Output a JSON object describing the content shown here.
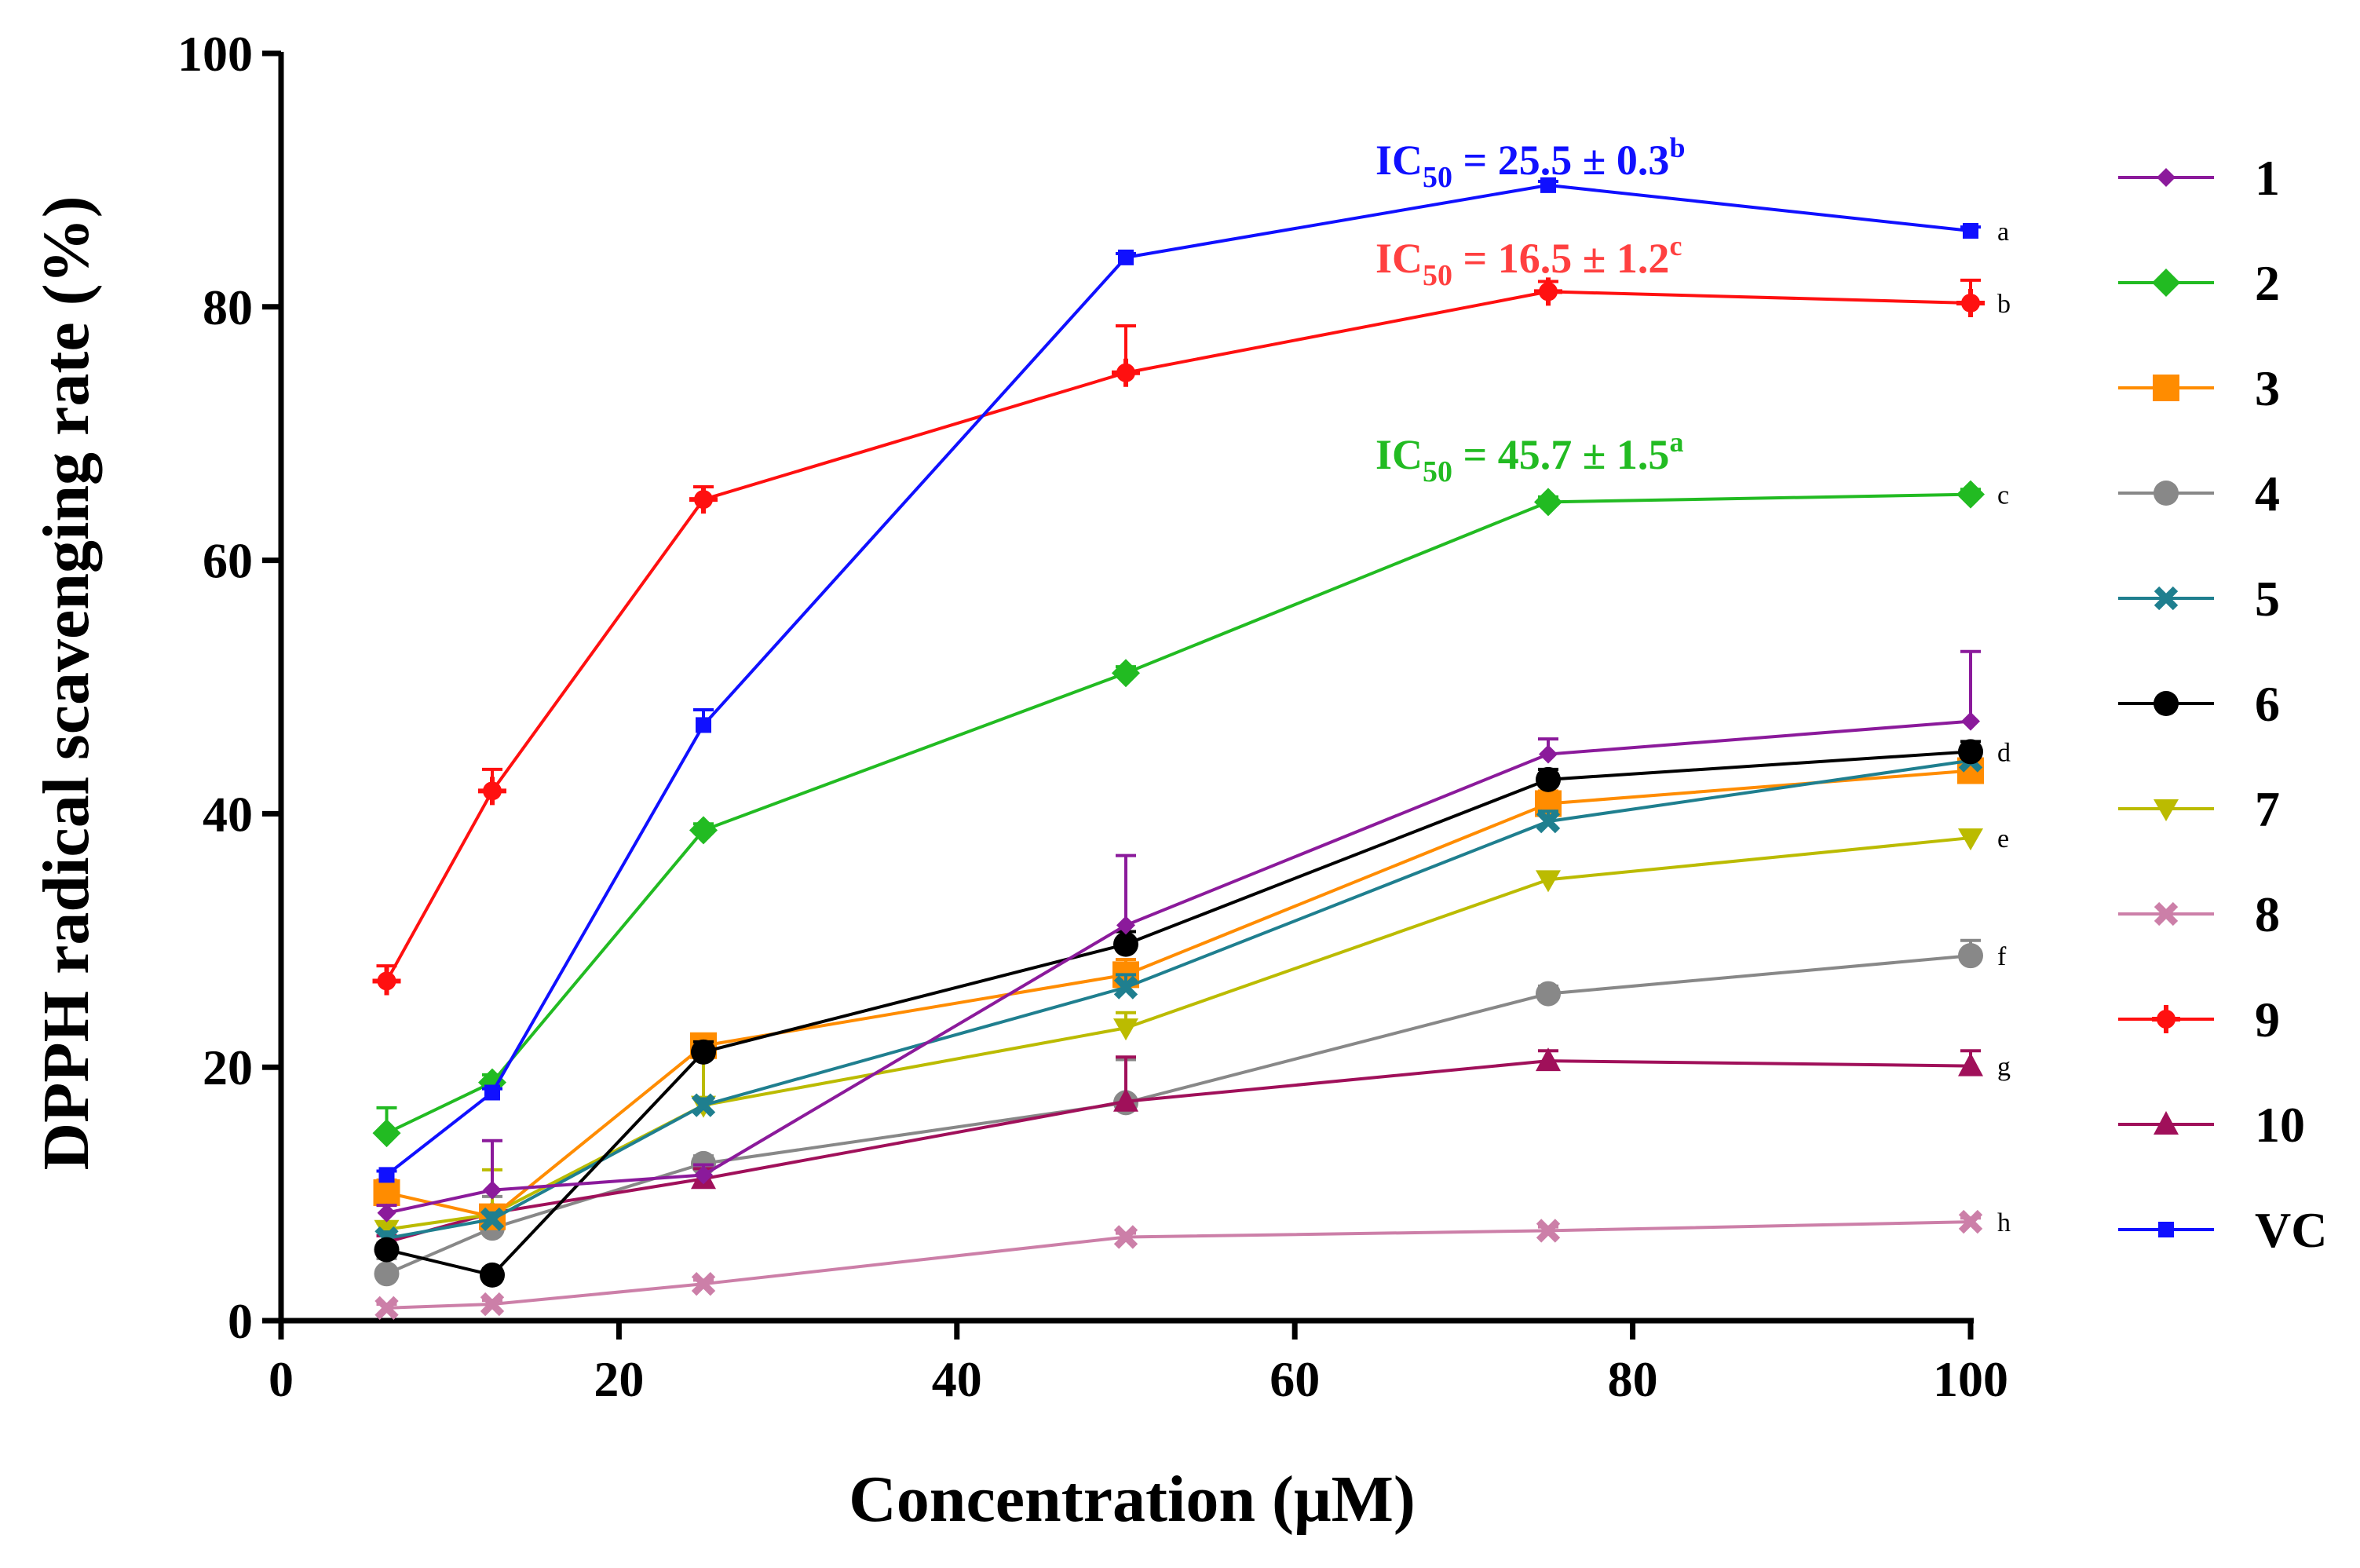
{
  "chart_data": {
    "type": "line",
    "title": "",
    "xlabel": "Concentration (μM)",
    "ylabel": "DPPH radical scavenging rate (%)",
    "xlim": [
      0,
      100
    ],
    "ylim": [
      0,
      100
    ],
    "xticks": [
      0,
      20,
      40,
      60,
      80,
      100
    ],
    "yticks": [
      0,
      20,
      40,
      60,
      80,
      100
    ],
    "legend_position": "right",
    "series": [
      {
        "name": "1",
        "color": "#8b1a9b",
        "marker": "diamond-small",
        "x": [
          6.25,
          12.5,
          25,
          50,
          75,
          100
        ],
        "values": [
          8.5,
          10.3,
          11.5,
          31.2,
          44.7,
          47.3
        ],
        "errors": [
          0.6,
          3.9,
          0.8,
          5.5,
          1.2,
          5.5
        ],
        "letter": ""
      },
      {
        "name": "2",
        "color": "#22bb22",
        "marker": "diamond",
        "x": [
          6.25,
          12.5,
          25,
          50,
          75,
          100
        ],
        "values": [
          14.8,
          18.8,
          38.7,
          51.1,
          64.6,
          65.2
        ],
        "errors": [
          2.0,
          0.6,
          0.5,
          0.5,
          0.4,
          0.4
        ],
        "letter": "c"
      },
      {
        "name": "3",
        "color": "#ff8c00",
        "marker": "square",
        "x": [
          6.25,
          12.5,
          25,
          50,
          75,
          100
        ],
        "values": [
          10.1,
          8.2,
          21.7,
          27.3,
          40.8,
          43.4
        ],
        "errors": [
          1.0,
          0.8,
          0.5,
          1.2,
          1.0,
          1.0
        ],
        "letter": ""
      },
      {
        "name": "4",
        "color": "#888888",
        "marker": "circle",
        "x": [
          6.25,
          12.5,
          25,
          50,
          75,
          100
        ],
        "values": [
          3.7,
          7.3,
          12.4,
          17.2,
          25.8,
          28.8
        ],
        "errors": [
          1.2,
          2.5,
          0.6,
          3.4,
          0.6,
          1.2
        ],
        "letter": "f"
      },
      {
        "name": "5",
        "color": "#1f7f8f",
        "marker": "x",
        "x": [
          6.25,
          12.5,
          25,
          50,
          75,
          100
        ],
        "values": [
          6.5,
          8.0,
          17.0,
          26.3,
          39.4,
          44.2
        ],
        "errors": [
          0.5,
          0.5,
          0.5,
          1.0,
          0.8,
          0.8
        ],
        "letter": ""
      },
      {
        "name": "6",
        "color": "#000000",
        "marker": "circle",
        "x": [
          6.25,
          12.5,
          25,
          50,
          75,
          100
        ],
        "values": [
          5.6,
          3.6,
          21.2,
          29.7,
          42.7,
          44.9
        ],
        "errors": [
          0.5,
          0.5,
          0.8,
          1.0,
          0.8,
          0.8
        ],
        "letter": "d"
      },
      {
        "name": "7",
        "color": "#bbbb00",
        "marker": "triangle-down",
        "x": [
          6.25,
          12.5,
          25,
          50,
          75,
          100
        ],
        "values": [
          7.2,
          8.4,
          17.0,
          23.1,
          34.8,
          38.1
        ],
        "errors": [
          0.5,
          3.5,
          4.0,
          1.2,
          0.6,
          0.6
        ],
        "letter": "e"
      },
      {
        "name": "8",
        "color": "#cc7fa8",
        "marker": "x",
        "x": [
          6.25,
          12.5,
          25,
          50,
          75,
          100
        ],
        "values": [
          1.0,
          1.3,
          2.9,
          6.6,
          7.1,
          7.8
        ],
        "errors": [
          0.3,
          0.3,
          0.3,
          0.3,
          0.3,
          0.3
        ],
        "letter": "h"
      },
      {
        "name": "9",
        "color": "#ff1010",
        "marker": "plus-dot",
        "x": [
          6.25,
          12.5,
          25,
          50,
          75,
          100
        ],
        "values": [
          26.8,
          41.8,
          64.8,
          74.8,
          81.2,
          80.3
        ],
        "errors": [
          1.2,
          1.7,
          1.0,
          3.7,
          0.8,
          1.8
        ],
        "letter": "b"
      },
      {
        "name": "10",
        "color": "#a0105a",
        "marker": "triangle",
        "x": [
          6.25,
          12.5,
          25,
          50,
          75,
          100
        ],
        "values": [
          6.2,
          8.5,
          11.2,
          17.3,
          20.5,
          20.1
        ],
        "errors": [
          0.5,
          0.5,
          0.8,
          3.5,
          0.8,
          1.2
        ],
        "letter": "g"
      },
      {
        "name": "VC",
        "color": "#1010ff",
        "marker": "square-small",
        "x": [
          6.25,
          12.5,
          25,
          50,
          75,
          100
        ],
        "values": [
          11.5,
          18.0,
          47.0,
          83.9,
          89.6,
          86.0
        ],
        "errors": [
          0.3,
          0.3,
          1.2,
          0.3,
          0.3,
          0.3
        ],
        "letter": "a"
      }
    ],
    "annotations": [
      {
        "id": "vc",
        "color": "#1010ff",
        "prefix": "IC",
        "sub": "50",
        "value": " = 25.5 ± 0.3",
        "sup": "b"
      },
      {
        "id": "s9",
        "color": "#ff4040",
        "prefix": "IC",
        "sub": "50",
        "value": " = 16.5 ± 1.2",
        "sup": "c"
      },
      {
        "id": "s2",
        "color": "#22bb22",
        "prefix": "IC",
        "sub": "50",
        "value": " = 45.7 ± 1.5",
        "sup": "a"
      }
    ]
  }
}
